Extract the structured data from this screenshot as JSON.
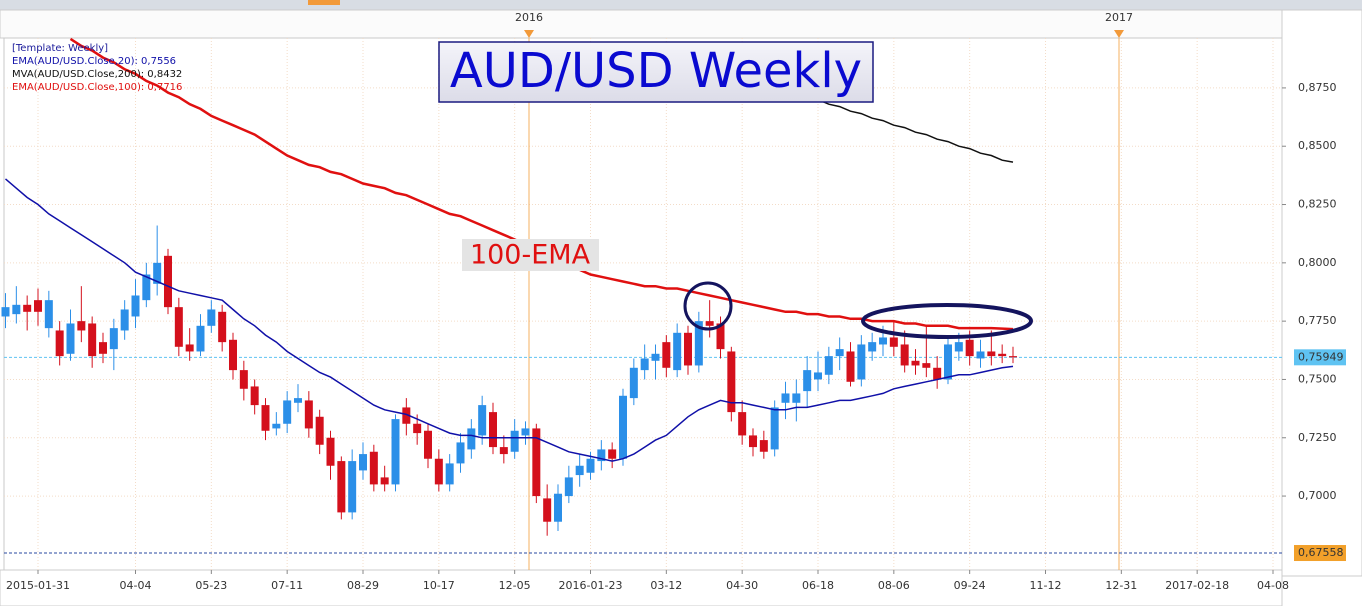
{
  "chart_data": {
    "type": "candlestick",
    "title": "AUD/USD Weekly",
    "annotation": "100-EMA",
    "template": "[Template: Weekly]",
    "top_labels": [
      "2016",
      "2017"
    ],
    "categories": [
      null,
      null,
      null,
      "2015-01-31",
      null,
      null,
      null,
      null,
      null,
      null,
      null,
      null,
      "04-04",
      null,
      null,
      null,
      null,
      null,
      null,
      "05-23",
      null,
      null,
      null,
      null,
      null,
      null,
      "07-11",
      null,
      null,
      null,
      null,
      null,
      null,
      "08-29",
      null,
      null,
      null,
      null,
      null,
      null,
      "10-17",
      null,
      null,
      null,
      null,
      null,
      null,
      "12-05",
      null,
      null,
      null,
      null,
      null,
      null,
      "2016-01-23",
      null,
      null,
      null,
      null,
      null,
      null,
      "03-12",
      null,
      null,
      null,
      null,
      null,
      null,
      "04-30",
      null,
      null,
      null,
      null,
      null,
      null,
      "06-18",
      null,
      null,
      null,
      null,
      null,
      null,
      "08-06",
      null,
      null,
      null,
      null,
      null,
      null,
      "09-24",
      null,
      null,
      null,
      null,
      null,
      null,
      "11-12",
      null,
      null,
      null,
      null,
      null,
      null,
      "12-31",
      null,
      null,
      null,
      null,
      null,
      null,
      "2017-02-18",
      null,
      null,
      null,
      null,
      null,
      null,
      "04-08"
    ],
    "open": [
      0.777,
      0.778,
      0.782,
      0.784,
      0.772,
      0.771,
      0.761,
      0.775,
      0.774,
      0.766,
      0.763,
      0.771,
      0.777,
      0.784,
      0.791,
      0.803,
      0.781,
      0.765,
      0.762,
      0.773,
      0.779,
      0.767,
      0.754,
      0.747,
      0.739,
      0.729,
      0.731,
      0.74,
      0.741,
      0.734,
      0.725,
      0.715,
      0.693,
      0.711,
      0.719,
      0.708,
      0.705,
      0.738,
      0.731,
      0.728,
      0.716,
      0.705,
      0.714,
      0.72,
      0.726,
      0.736,
      0.721,
      0.719,
      0.726,
      0.729,
      0.699,
      0.689,
      0.7,
      0.709,
      0.71,
      0.715,
      0.72,
      0.716,
      0.742,
      0.754,
      0.758,
      0.766,
      0.754,
      0.77,
      0.756,
      0.775,
      0.774,
      0.762,
      0.736,
      0.726,
      0.724,
      0.72,
      0.74,
      0.74,
      0.745,
      0.75,
      0.752,
      0.76,
      0.762,
      0.75,
      0.762,
      0.765,
      0.768,
      0.765,
      0.758,
      0.757,
      0.755,
      0.75,
      0.762,
      0.767,
      0.759,
      0.762,
      0.761,
      0.76,
      null,
      null,
      null,
      null,
      null,
      null,
      null,
      null,
      null,
      null,
      null,
      null,
      null,
      null,
      null,
      null,
      null,
      null,
      null,
      null,
      null,
      null,
      null,
      null
    ],
    "high": [
      0.787,
      0.79,
      0.786,
      0.789,
      0.788,
      0.775,
      0.78,
      0.79,
      0.777,
      0.77,
      0.776,
      0.784,
      0.793,
      0.8,
      0.816,
      0.806,
      0.785,
      0.772,
      0.778,
      0.784,
      0.782,
      0.77,
      0.758,
      0.75,
      0.742,
      0.736,
      0.745,
      0.748,
      0.745,
      0.737,
      0.728,
      0.717,
      0.72,
      0.723,
      0.722,
      0.713,
      0.735,
      0.742,
      0.735,
      0.731,
      0.72,
      0.718,
      0.727,
      0.733,
      0.743,
      0.74,
      0.726,
      0.733,
      0.732,
      0.731,
      0.705,
      0.705,
      0.713,
      0.718,
      0.719,
      0.724,
      0.723,
      0.746,
      0.759,
      0.765,
      0.765,
      0.769,
      0.774,
      0.773,
      0.779,
      0.784,
      0.777,
      0.764,
      0.741,
      0.729,
      0.728,
      0.741,
      0.749,
      0.75,
      0.76,
      0.762,
      0.764,
      0.768,
      0.766,
      0.769,
      0.77,
      0.773,
      0.775,
      0.771,
      0.763,
      0.773,
      0.76,
      0.768,
      0.77,
      0.771,
      0.767,
      0.771,
      0.765,
      0.764,
      null,
      null,
      null,
      null,
      null,
      null,
      null,
      null,
      null,
      null,
      null,
      null,
      null,
      null,
      null,
      null,
      null,
      null,
      null,
      null,
      null,
      null,
      null,
      null
    ],
    "low": [
      0.772,
      0.774,
      0.771,
      0.773,
      0.768,
      0.756,
      0.758,
      0.766,
      0.755,
      0.757,
      0.754,
      0.767,
      0.772,
      0.781,
      0.786,
      0.778,
      0.76,
      0.758,
      0.76,
      0.77,
      0.762,
      0.75,
      0.741,
      0.735,
      0.724,
      0.726,
      0.727,
      0.736,
      0.725,
      0.718,
      0.707,
      0.69,
      0.69,
      0.707,
      0.702,
      0.702,
      0.702,
      0.726,
      0.722,
      0.712,
      0.702,
      0.702,
      0.71,
      0.716,
      0.722,
      0.718,
      0.714,
      0.716,
      0.722,
      0.697,
      0.683,
      0.685,
      0.697,
      0.704,
      0.707,
      0.711,
      0.712,
      0.713,
      0.739,
      0.75,
      0.75,
      0.751,
      0.751,
      0.752,
      0.753,
      0.768,
      0.759,
      0.732,
      0.722,
      0.717,
      0.716,
      0.717,
      0.733,
      0.732,
      0.738,
      0.745,
      0.748,
      0.754,
      0.747,
      0.747,
      0.758,
      0.76,
      0.76,
      0.753,
      0.752,
      0.751,
      0.746,
      0.748,
      0.758,
      0.756,
      0.755,
      0.756,
      0.757,
      0.757,
      null,
      null,
      null,
      null,
      null,
      null,
      null,
      null,
      null,
      null,
      null,
      null,
      null,
      null,
      null,
      null,
      null,
      null,
      null,
      null,
      null,
      null,
      null,
      null
    ],
    "close": [
      0.781,
      0.782,
      0.779,
      0.779,
      0.784,
      0.76,
      0.774,
      0.771,
      0.76,
      0.761,
      0.772,
      0.78,
      0.786,
      0.795,
      0.8,
      0.781,
      0.764,
      0.762,
      0.773,
      0.78,
      0.766,
      0.754,
      0.746,
      0.739,
      0.728,
      0.731,
      0.741,
      0.742,
      0.729,
      0.722,
      0.713,
      0.693,
      0.715,
      0.718,
      0.705,
      0.705,
      0.733,
      0.731,
      0.727,
      0.716,
      0.705,
      0.714,
      0.723,
      0.729,
      0.739,
      0.721,
      0.718,
      0.728,
      0.729,
      0.7,
      0.689,
      0.701,
      0.708,
      0.713,
      0.716,
      0.72,
      0.716,
      0.743,
      0.755,
      0.759,
      0.761,
      0.755,
      0.77,
      0.756,
      0.775,
      0.773,
      0.763,
      0.736,
      0.726,
      0.721,
      0.719,
      0.738,
      0.744,
      0.744,
      0.754,
      0.753,
      0.76,
      0.763,
      0.749,
      0.765,
      0.766,
      0.768,
      0.764,
      0.756,
      0.756,
      0.755,
      0.75,
      0.765,
      0.766,
      0.76,
      0.762,
      0.76,
      0.76,
      0.7595,
      null,
      null,
      null,
      null,
      null,
      null,
      null,
      null,
      null,
      null,
      null,
      null,
      null,
      null,
      null,
      null,
      null,
      null,
      null,
      null,
      null,
      null,
      null,
      null
    ],
    "up_color": "#2b8fe8",
    "down_color": "#d4101c",
    "series": [
      {
        "name": "EMA(AUD/USD.Close,20): 0,7556",
        "color": "#1010a8",
        "values": [
          0.836,
          0.832,
          0.828,
          0.825,
          0.821,
          0.818,
          0.815,
          0.812,
          0.809,
          0.806,
          0.803,
          0.8,
          0.796,
          0.794,
          0.792,
          0.79,
          0.788,
          0.787,
          0.786,
          0.785,
          0.784,
          0.78,
          0.776,
          0.773,
          0.769,
          0.766,
          0.762,
          0.759,
          0.756,
          0.753,
          0.751,
          0.748,
          0.745,
          0.742,
          0.739,
          0.737,
          0.736,
          0.735,
          0.733,
          0.731,
          0.729,
          0.727,
          0.726,
          0.726,
          0.725,
          0.725,
          0.725,
          0.725,
          0.725,
          0.725,
          0.723,
          0.721,
          0.719,
          0.718,
          0.717,
          0.716,
          0.715,
          0.716,
          0.718,
          0.721,
          0.724,
          0.726,
          0.73,
          0.734,
          0.737,
          0.739,
          0.741,
          0.74,
          0.74,
          0.739,
          0.738,
          0.737,
          0.737,
          0.738,
          0.738,
          0.739,
          0.74,
          0.741,
          0.741,
          0.742,
          0.743,
          0.744,
          0.746,
          0.747,
          0.748,
          0.749,
          0.75,
          0.751,
          0.752,
          0.752,
          0.753,
          0.754,
          0.755,
          0.7556,
          null,
          null,
          null,
          null,
          null,
          null,
          null,
          null,
          null,
          null,
          null,
          null,
          null,
          null,
          null,
          null,
          null,
          null,
          null,
          null,
          null,
          null,
          null,
          null
        ]
      },
      {
        "name": "MVA(AUD/USD.Close,200): 0,8432",
        "color": "#111111",
        "values": [
          null,
          null,
          null,
          null,
          null,
          null,
          null,
          null,
          null,
          null,
          null,
          null,
          null,
          null,
          null,
          null,
          null,
          null,
          null,
          null,
          null,
          null,
          null,
          null,
          null,
          null,
          null,
          null,
          null,
          null,
          null,
          null,
          null,
          null,
          null,
          null,
          null,
          null,
          null,
          null,
          null,
          null,
          null,
          null,
          null,
          null,
          null,
          null,
          null,
          null,
          null,
          null,
          null,
          null,
          null,
          null,
          null,
          null,
          null,
          null,
          null,
          null,
          null,
          null,
          null,
          null,
          null,
          null,
          null,
          null,
          null,
          null,
          null,
          null,
          null,
          0.87,
          0.868,
          0.867,
          0.865,
          0.864,
          0.862,
          0.861,
          0.859,
          0.858,
          0.856,
          0.855,
          0.853,
          0.852,
          0.85,
          0.849,
          0.847,
          0.846,
          0.844,
          0.8432,
          null,
          null,
          null,
          null,
          null,
          null,
          null,
          null,
          null,
          null,
          null,
          null,
          null,
          null,
          null,
          null,
          null,
          null,
          null,
          null,
          null,
          null,
          null,
          null
        ]
      },
      {
        "name": "EMA(AUD/USD.Close,100): 0,7716",
        "color": "#e01010",
        "values": [
          null,
          null,
          null,
          null,
          null,
          null,
          0.896,
          0.893,
          0.891,
          0.888,
          0.886,
          0.883,
          0.881,
          0.878,
          0.876,
          0.873,
          0.871,
          0.868,
          0.866,
          0.863,
          0.861,
          0.859,
          0.857,
          0.855,
          0.852,
          0.849,
          0.846,
          0.844,
          0.842,
          0.841,
          0.839,
          0.838,
          0.836,
          0.834,
          0.833,
          0.832,
          0.83,
          0.829,
          0.827,
          0.825,
          0.823,
          0.821,
          0.82,
          0.818,
          0.816,
          0.814,
          0.812,
          0.81,
          0.808,
          0.806,
          0.803,
          0.801,
          0.799,
          0.797,
          0.795,
          0.794,
          0.793,
          0.792,
          0.791,
          0.79,
          0.79,
          0.789,
          0.789,
          0.788,
          0.787,
          0.786,
          0.785,
          0.784,
          0.783,
          0.782,
          0.781,
          0.78,
          0.779,
          0.779,
          0.778,
          0.778,
          0.777,
          0.777,
          0.776,
          0.776,
          0.775,
          0.775,
          0.775,
          0.774,
          0.774,
          0.773,
          0.773,
          0.773,
          0.772,
          0.772,
          0.772,
          0.772,
          0.7718,
          0.7716,
          null,
          null,
          null,
          null,
          null,
          null,
          null,
          null,
          null,
          null,
          null,
          null,
          null,
          null,
          null,
          null,
          null,
          null,
          null,
          null,
          null,
          null,
          null,
          null
        ]
      }
    ],
    "ylim": [
      0.6683,
      0.8964
    ],
    "yticks": [
      {
        "value": 0.7,
        "label": "0,7000"
      },
      {
        "value": 0.725,
        "label": "0,7250"
      },
      {
        "value": 0.75,
        "label": "0,7500"
      },
      {
        "value": 0.775,
        "label": "0,7750"
      },
      {
        "value": 0.8,
        "label": "0,8000"
      },
      {
        "value": 0.825,
        "label": "0,8250"
      },
      {
        "value": 0.85,
        "label": "0,8500"
      },
      {
        "value": 0.875,
        "label": "0,8750"
      }
    ],
    "price_markers": [
      {
        "value": 0.75949,
        "label": "0,75949",
        "color": "#5fc3f2"
      },
      {
        "value": 0.67558,
        "label": "0,67558",
        "color": "#f2a02a"
      }
    ],
    "grid": true
  }
}
